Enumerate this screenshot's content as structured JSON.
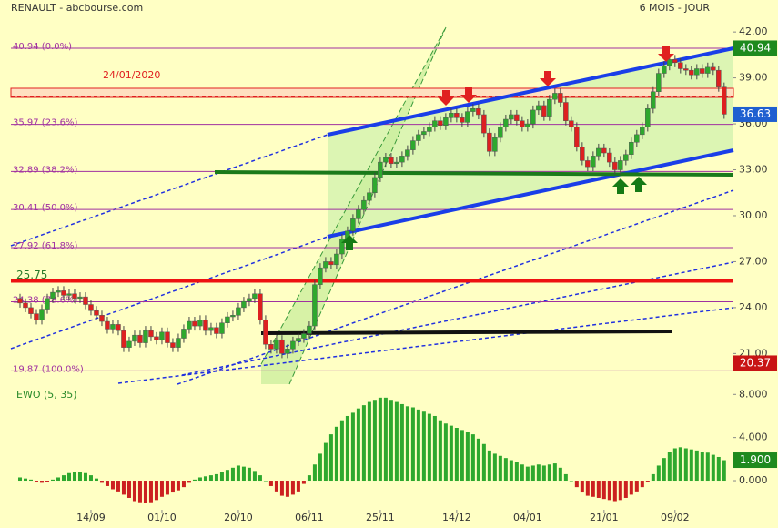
{
  "chart_data": {
    "type": "candlestick",
    "title": "RENAULT - abcbourse.com",
    "period": "6 MOIS - JOUR",
    "annotation": "24/01/2020",
    "xlim": [
      -3,
      130.7
    ],
    "xticks": [
      {
        "value": 13,
        "label": "14/09"
      },
      {
        "value": 26,
        "label": "01/10"
      },
      {
        "value": 40,
        "label": "20/10"
      },
      {
        "value": 53,
        "label": "06/11"
      },
      {
        "value": 66,
        "label": "25/11"
      },
      {
        "value": 80,
        "label": "14/12"
      },
      {
        "value": 93,
        "label": "04/01"
      },
      {
        "value": 107,
        "label": "21/01"
      },
      {
        "value": 120,
        "label": "09/02"
      }
    ],
    "ylim": [
      19,
      42.9
    ],
    "yticks": [
      {
        "value": 21,
        "label": "21.00"
      },
      {
        "value": 24,
        "label": "24.00"
      },
      {
        "value": 27,
        "label": "27.00"
      },
      {
        "value": 30,
        "label": "30.00"
      },
      {
        "value": 33,
        "label": "33.00"
      },
      {
        "value": 36,
        "label": "36.00"
      },
      {
        "value": 39,
        "label": "39.00"
      },
      {
        "value": 42,
        "label": "42.00"
      }
    ],
    "up_color": "#2ea82e",
    "down_color": "#dd2020",
    "open": [
      24.6,
      24.3,
      24.0,
      23.6,
      23.2,
      23.9,
      24.6,
      25.0,
      25.1,
      24.8,
      24.9,
      24.6,
      24.7,
      24.2,
      23.8,
      23.5,
      23.1,
      22.6,
      22.9,
      22.5,
      21.4,
      21.8,
      22.2,
      21.7,
      22.5,
      22.1,
      21.9,
      22.4,
      21.7,
      21.4,
      22.0,
      22.6,
      23.1,
      22.8,
      23.2,
      22.5,
      22.7,
      22.3,
      23.0,
      23.4,
      23.5,
      24.0,
      24.4,
      24.6,
      24.9,
      23.2,
      21.6,
      21.3,
      21.9,
      21.0,
      21.3,
      21.8,
      22.0,
      22.3,
      22.8,
      25.5,
      26.6,
      27.0,
      26.8,
      27.5,
      28.5,
      29.0,
      29.8,
      30.4,
      31.0,
      31.5,
      32.5,
      33.5,
      33.8,
      33.4,
      33.5,
      33.9,
      34.3,
      34.9,
      35.3,
      35.5,
      35.8,
      36.2,
      35.9,
      36.4,
      36.7,
      36.4,
      36.1,
      36.8,
      37.0,
      36.6,
      35.4,
      34.2,
      35.1,
      35.8,
      36.3,
      36.6,
      36.2,
      35.8,
      36.0,
      36.9,
      37.2,
      36.5,
      37.6,
      38.0,
      37.4,
      36.2,
      35.8,
      34.5,
      33.6,
      33.2,
      33.9,
      34.4,
      34.1,
      33.5,
      33.0,
      33.6,
      34.0,
      34.8,
      35.3,
      35.8,
      37.0,
      38.1,
      39.3,
      39.8,
      40.2,
      40.0,
      39.6,
      39.5,
      39.2,
      39.6,
      39.3,
      39.7,
      39.5,
      38.4
    ],
    "high": [
      24.9,
      24.6,
      24.3,
      23.9,
      24.2,
      24.9,
      25.3,
      25.4,
      25.4,
      25.2,
      25.2,
      25.0,
      25.0,
      24.5,
      24.1,
      23.8,
      23.4,
      23.2,
      23.2,
      22.8,
      22.1,
      22.5,
      22.5,
      22.8,
      22.8,
      22.4,
      22.7,
      22.7,
      22.0,
      22.3,
      22.9,
      23.4,
      23.4,
      23.5,
      23.5,
      23.0,
      23.0,
      23.3,
      23.7,
      23.8,
      24.3,
      24.7,
      24.9,
      25.2,
      25.2,
      23.5,
      21.9,
      22.2,
      22.2,
      21.6,
      22.1,
      22.3,
      22.6,
      23.1,
      25.8,
      26.9,
      27.3,
      27.3,
      27.8,
      28.8,
      29.3,
      30.1,
      30.7,
      31.3,
      31.8,
      32.8,
      33.8,
      34.1,
      34.1,
      33.8,
      34.2,
      34.6,
      35.2,
      35.6,
      35.8,
      36.1,
      36.5,
      36.5,
      36.7,
      37.0,
      37.0,
      36.7,
      37.1,
      37.3,
      37.3,
      36.9,
      35.7,
      35.4,
      36.1,
      36.6,
      36.9,
      36.9,
      36.5,
      36.3,
      37.2,
      37.5,
      37.5,
      37.9,
      38.3,
      38.3,
      37.7,
      36.5,
      36.1,
      34.8,
      33.9,
      34.2,
      34.7,
      34.7,
      34.4,
      33.8,
      33.9,
      34.3,
      35.1,
      35.6,
      36.1,
      37.3,
      38.4,
      39.6,
      40.1,
      40.5,
      40.5,
      40.3,
      39.9,
      39.8,
      39.9,
      39.9,
      40.0,
      40.0,
      39.8,
      38.7
    ],
    "low": [
      24.0,
      23.7,
      23.3,
      22.9,
      22.9,
      23.6,
      24.3,
      24.7,
      24.5,
      24.5,
      24.3,
      24.3,
      23.9,
      23.5,
      23.2,
      22.8,
      22.3,
      22.3,
      22.2,
      21.1,
      21.1,
      21.5,
      21.4,
      21.4,
      21.8,
      21.6,
      21.6,
      21.4,
      21.1,
      21.1,
      21.7,
      22.3,
      22.5,
      22.5,
      22.2,
      22.2,
      22.0,
      22.0,
      22.7,
      23.1,
      23.2,
      23.7,
      24.1,
      24.3,
      22.9,
      21.3,
      21.0,
      21.0,
      20.7,
      20.7,
      21.0,
      21.5,
      21.7,
      22.0,
      22.5,
      25.2,
      26.3,
      26.5,
      26.5,
      27.2,
      28.2,
      28.7,
      29.5,
      30.1,
      30.7,
      31.2,
      32.2,
      33.2,
      33.1,
      33.1,
      33.2,
      33.6,
      34.0,
      34.6,
      35.0,
      35.2,
      35.5,
      35.6,
      35.6,
      36.1,
      36.1,
      35.8,
      35.8,
      36.5,
      36.3,
      35.1,
      33.9,
      33.9,
      34.8,
      35.5,
      36.0,
      35.9,
      35.5,
      35.5,
      35.7,
      36.6,
      36.2,
      36.2,
      37.3,
      37.1,
      35.9,
      35.5,
      34.2,
      33.3,
      32.9,
      32.9,
      33.6,
      33.8,
      33.2,
      32.7,
      32.7,
      33.3,
      33.7,
      34.5,
      35.0,
      35.5,
      36.7,
      37.8,
      39.0,
      39.5,
      39.7,
      39.3,
      39.2,
      38.9,
      38.9,
      39.0,
      39.0,
      39.2,
      38.1,
      36.33
    ],
    "close": [
      24.3,
      24.0,
      23.6,
      23.2,
      23.9,
      24.6,
      25.0,
      25.1,
      24.8,
      24.9,
      24.6,
      24.7,
      24.2,
      23.8,
      23.5,
      23.1,
      22.6,
      22.9,
      22.5,
      21.4,
      21.8,
      22.2,
      21.7,
      22.5,
      22.1,
      21.9,
      22.4,
      21.7,
      21.4,
      22.0,
      22.6,
      23.1,
      22.8,
      23.2,
      22.5,
      22.7,
      22.3,
      23.0,
      23.4,
      23.5,
      24.0,
      24.4,
      24.6,
      24.9,
      23.2,
      21.6,
      21.3,
      21.9,
      21.0,
      21.3,
      21.8,
      22.0,
      22.3,
      22.8,
      25.5,
      26.6,
      27.0,
      26.8,
      27.5,
      28.5,
      29.0,
      29.8,
      30.4,
      31.0,
      31.5,
      32.5,
      33.5,
      33.8,
      33.4,
      33.5,
      33.9,
      34.3,
      34.9,
      35.3,
      35.5,
      35.8,
      36.2,
      35.9,
      36.4,
      36.7,
      36.4,
      36.1,
      36.8,
      37.0,
      36.6,
      35.4,
      34.2,
      35.1,
      35.8,
      36.3,
      36.6,
      36.2,
      35.8,
      36.0,
      36.9,
      37.2,
      36.5,
      37.6,
      38.0,
      37.4,
      36.2,
      35.8,
      34.5,
      33.6,
      33.2,
      33.9,
      34.4,
      34.1,
      33.5,
      33.0,
      33.6,
      34.0,
      34.8,
      35.3,
      35.8,
      37.0,
      38.1,
      39.3,
      39.8,
      40.2,
      40.0,
      39.6,
      39.5,
      39.2,
      39.6,
      39.3,
      39.7,
      39.5,
      38.4,
      36.63
    ],
    "fib_levels": [
      {
        "value": 40.94,
        "label": "40.94 (0.0%)"
      },
      {
        "value": 35.97,
        "label": "35.97 (23.6%)"
      },
      {
        "value": 32.89,
        "label": "32.89 (38.2%)"
      },
      {
        "value": 30.41,
        "label": "30.41 (50.0%)"
      },
      {
        "value": 27.92,
        "label": "27.92 (61.8%)"
      },
      {
        "value": 24.38,
        "label": "24.38 (78.6%)"
      },
      {
        "value": 19.87,
        "label": "19.87 (100.0%)"
      }
    ],
    "fib_color": "#a030a0",
    "levels": [
      {
        "value": 25.75,
        "color": "#ee1111"
      }
    ],
    "price_tags": [
      {
        "value": 40.94,
        "color": "#1e8a1e"
      },
      {
        "value": 36.63,
        "color": "#1f5fd0"
      },
      {
        "value": 20.37,
        "color": "#c81414"
      }
    ],
    "indicator": {
      "type": "bar",
      "name": "EWO (5, 35)",
      "ylim": [
        -2.7,
        8.7
      ],
      "yticks": [
        {
          "value": 0,
          "label": "0.000"
        },
        {
          "value": 4,
          "label": "4.000"
        },
        {
          "value": 8,
          "label": "8.000"
        }
      ],
      "up_color": "#2ea82e",
      "down_color": "#cc2020",
      "tag": {
        "value": 1.9,
        "label": "1.900",
        "color": "#1e8a1e"
      },
      "values": [
        0.3,
        0.2,
        0.1,
        -0.1,
        -0.2,
        -0.1,
        0.1,
        0.3,
        0.5,
        0.7,
        0.8,
        0.8,
        0.7,
        0.5,
        0.2,
        -0.2,
        -0.5,
        -0.8,
        -1.0,
        -1.3,
        -1.6,
        -1.9,
        -2.0,
        -2.1,
        -2.0,
        -1.8,
        -1.5,
        -1.3,
        -1.1,
        -0.9,
        -0.6,
        -0.2,
        0.1,
        0.3,
        0.4,
        0.5,
        0.6,
        0.8,
        1.0,
        1.2,
        1.4,
        1.3,
        1.2,
        0.9,
        0.5,
        0.0,
        -0.5,
        -1.0,
        -1.4,
        -1.5,
        -1.3,
        -1.0,
        -0.3,
        0.5,
        1.5,
        2.5,
        3.5,
        4.3,
        5.0,
        5.6,
        6.0,
        6.3,
        6.7,
        7.0,
        7.3,
        7.5,
        7.7,
        7.7,
        7.5,
        7.3,
        7.1,
        6.9,
        6.8,
        6.6,
        6.4,
        6.2,
        6.0,
        5.6,
        5.3,
        5.1,
        4.9,
        4.7,
        4.5,
        4.3,
        3.9,
        3.4,
        2.8,
        2.5,
        2.3,
        2.1,
        1.9,
        1.7,
        1.5,
        1.3,
        1.4,
        1.5,
        1.4,
        1.5,
        1.6,
        1.2,
        0.6,
        0.0,
        -0.6,
        -1.1,
        -1.4,
        -1.5,
        -1.6,
        -1.7,
        -1.8,
        -1.9,
        -1.8,
        -1.6,
        -1.3,
        -1.0,
        -0.6,
        -0.1,
        0.6,
        1.4,
        2.1,
        2.7,
        3.0,
        3.1,
        3.0,
        2.9,
        2.8,
        2.7,
        2.6,
        2.4,
        2.2,
        1.9
      ]
    }
  }
}
